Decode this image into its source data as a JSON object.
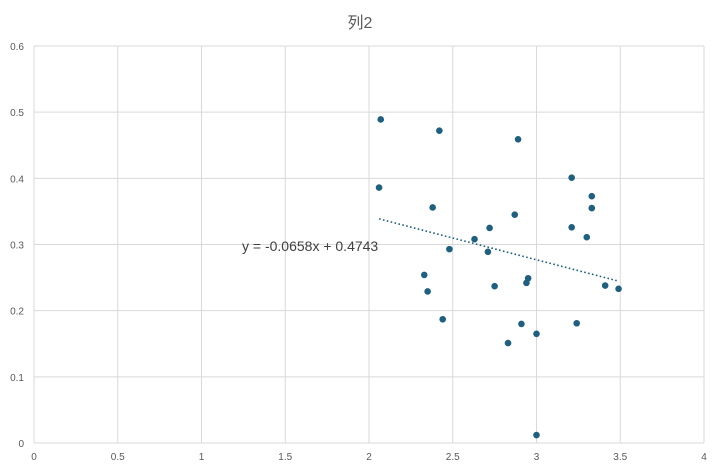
{
  "chart_data": {
    "type": "scatter",
    "title": "列2",
    "xlabel": "",
    "ylabel": "",
    "xlim": [
      0,
      4
    ],
    "ylim": [
      0,
      0.6
    ],
    "x_ticks": [
      "0",
      "0.5",
      "1",
      "1.5",
      "2",
      "2.5",
      "3",
      "3.5",
      "4"
    ],
    "y_ticks": [
      "0",
      "0.1",
      "0.2",
      "0.3",
      "0.4",
      "0.5",
      "0.6"
    ],
    "grid": true,
    "legend": "none",
    "marker_color": "#1f5f7f",
    "trendline": {
      "type": "linear",
      "slope": -0.0658,
      "intercept": 0.4743,
      "x_range": [
        2.06,
        3.48
      ],
      "equation_label": "y = -0.0658x + 0.4743",
      "color": "#1f5f7f",
      "style": "dotted"
    },
    "series": [
      {
        "points": [
          [
            2.07,
            0.489
          ],
          [
            2.42,
            0.472
          ],
          [
            2.06,
            0.386
          ],
          [
            2.38,
            0.356
          ],
          [
            2.89,
            0.459
          ],
          [
            2.87,
            0.345
          ],
          [
            2.63,
            0.308
          ],
          [
            2.72,
            0.325
          ],
          [
            2.71,
            0.289
          ],
          [
            2.48,
            0.293
          ],
          [
            2.33,
            0.254
          ],
          [
            2.35,
            0.229
          ],
          [
            2.75,
            0.237
          ],
          [
            2.94,
            0.242
          ],
          [
            2.95,
            0.249
          ],
          [
            2.44,
            0.187
          ],
          [
            2.91,
            0.18
          ],
          [
            2.83,
            0.151
          ],
          [
            3.0,
            0.165
          ],
          [
            3.0,
            0.012
          ],
          [
            3.21,
            0.401
          ],
          [
            3.33,
            0.373
          ],
          [
            3.33,
            0.355
          ],
          [
            3.21,
            0.326
          ],
          [
            3.3,
            0.311
          ],
          [
            3.41,
            0.238
          ],
          [
            3.49,
            0.233
          ],
          [
            3.24,
            0.181
          ]
        ]
      }
    ]
  }
}
